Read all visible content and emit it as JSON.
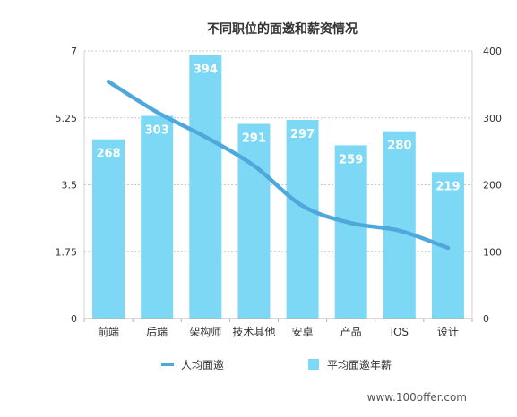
{
  "chart_data": {
    "type": "bar",
    "title": "不同职位的面邀和薪资情况",
    "categories": [
      "前端",
      "后端",
      "架构师",
      "技术其他",
      "安卓",
      "产品",
      "iOS",
      "设计"
    ],
    "series": [
      {
        "name": "平均面邀年薪",
        "type": "bar",
        "axis": "right",
        "values": [
          268,
          303,
          394,
          291,
          297,
          259,
          280,
          219
        ],
        "color": "#7dd8f6"
      },
      {
        "name": "人均面邀",
        "type": "line",
        "axis": "left",
        "values": [
          6.2,
          5.4,
          4.75,
          4.0,
          2.95,
          2.5,
          2.3,
          1.85
        ],
        "color": "#4fa8dc"
      }
    ],
    "left_axis": {
      "ticks": [
        "0",
        "1.75",
        "3.5",
        "5.25",
        "7"
      ],
      "ylim": [
        0,
        7
      ]
    },
    "right_axis": {
      "ticks": [
        "0",
        "100",
        "200",
        "300",
        "400"
      ],
      "ylim": [
        0,
        400
      ]
    },
    "grid": true,
    "legend_position": "bottom"
  },
  "watermark": "www.100offer.com"
}
